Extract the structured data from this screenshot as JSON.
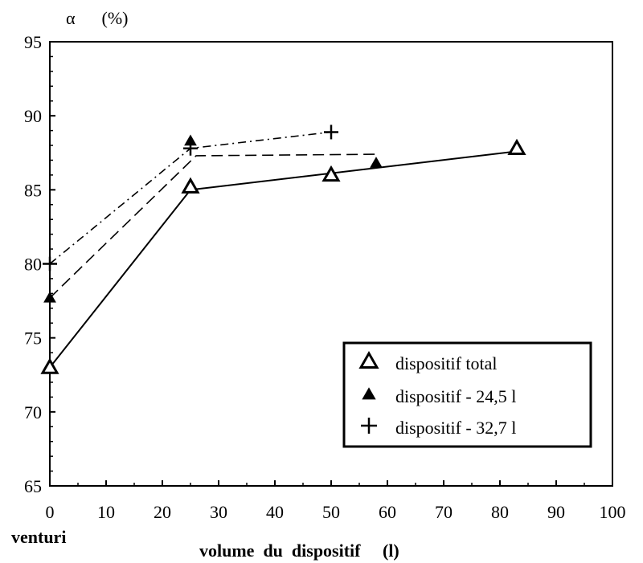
{
  "chart_data": {
    "type": "line",
    "title": "",
    "ylabel": "α      (%)",
    "xlabel": "volume  du  dispositif     (l)",
    "x_extra_label": "venturi",
    "xlim": [
      0,
      100
    ],
    "ylim": [
      65,
      95
    ],
    "x_ticks": [
      0,
      10,
      20,
      30,
      40,
      50,
      60,
      70,
      80,
      90,
      100
    ],
    "y_ticks": [
      65,
      70,
      75,
      80,
      85,
      90,
      95
    ],
    "grid": false,
    "legend_position": "bottom-right",
    "series": [
      {
        "name": "dispositif total",
        "marker": "open-triangle",
        "line_style": "solid",
        "points": [
          [
            0,
            73
          ],
          [
            25,
            85.2
          ],
          [
            50,
            86
          ],
          [
            83,
            87.8
          ]
        ],
        "line_points": [
          [
            0,
            73
          ],
          [
            25,
            85
          ],
          [
            83,
            87.6
          ]
        ]
      },
      {
        "name": "dispositif - 24,5  l",
        "marker": "filled-triangle",
        "line_style": "dashed",
        "points": [
          [
            0,
            77.7
          ],
          [
            25,
            88.3
          ],
          [
            58,
            86.8
          ]
        ],
        "line_points": [
          [
            0,
            77.7
          ],
          [
            26,
            87.3
          ],
          [
            58,
            87.4
          ]
        ]
      },
      {
        "name": "dispositif - 32,7  l",
        "marker": "plus",
        "line_style": "dash-dot",
        "points": [
          [
            0,
            80
          ],
          [
            25,
            87.8
          ],
          [
            50,
            88.9
          ]
        ],
        "line_points": [
          [
            0,
            80
          ],
          [
            25,
            87.8
          ],
          [
            50,
            88.9
          ]
        ]
      }
    ]
  }
}
